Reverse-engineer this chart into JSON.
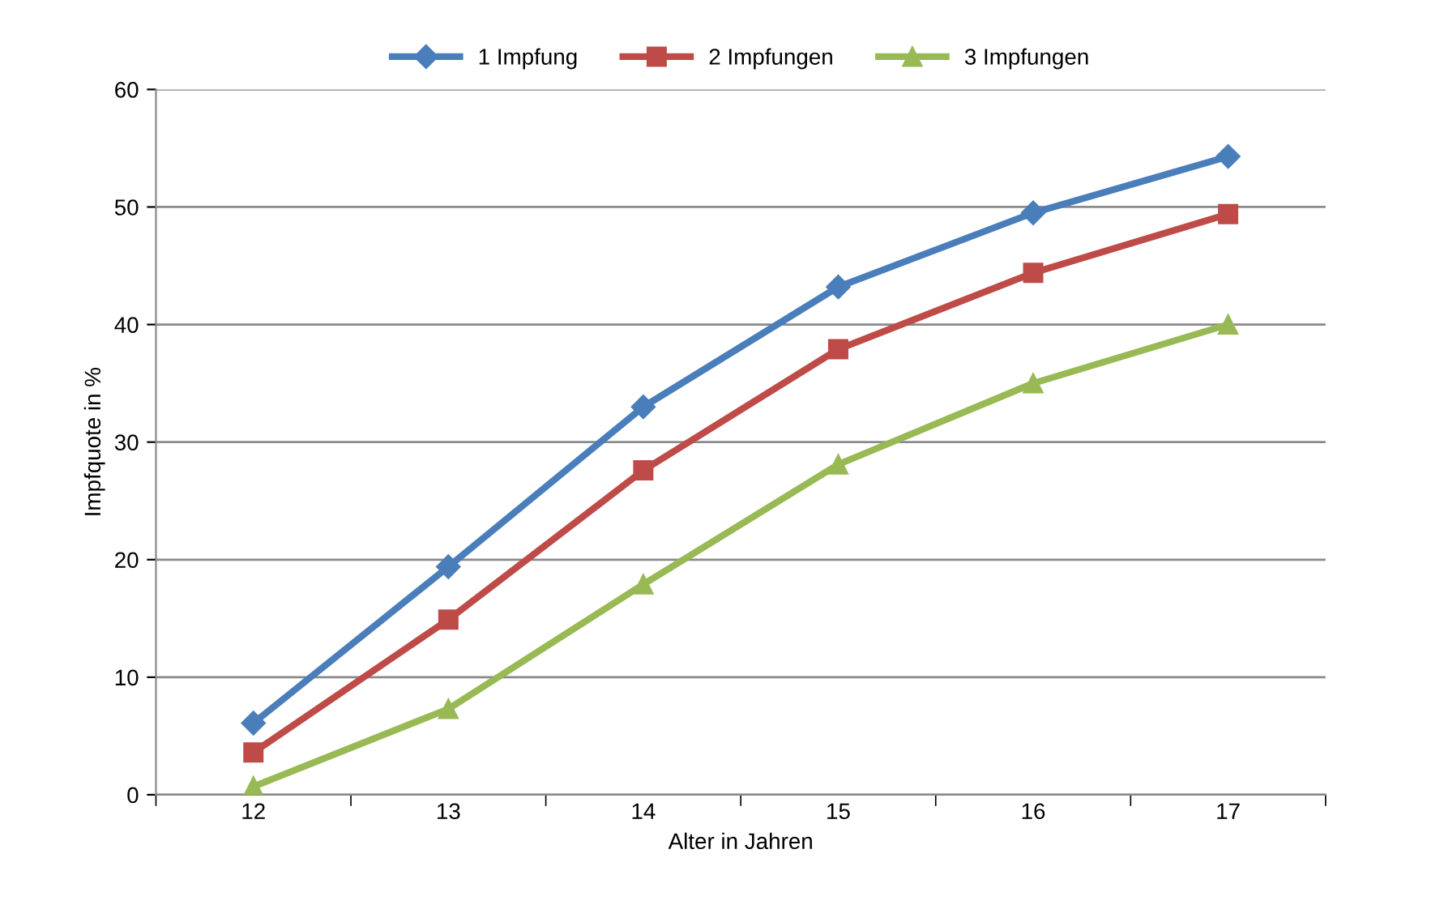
{
  "chart_data": {
    "type": "line",
    "xlabel": "Alter in Jahren",
    "ylabel": "Impfquote in %",
    "categories": [
      "12",
      "13",
      "14",
      "15",
      "16",
      "17"
    ],
    "series": [
      {
        "name": "1 Impfung",
        "color": "#4a7ebb",
        "values": [
          6.1,
          19.4,
          33.0,
          43.2,
          49.5,
          54.3
        ],
        "marker": "diamond"
      },
      {
        "name": "2 Impfungen",
        "color": "#be4b48",
        "values": [
          3.6,
          14.9,
          27.6,
          37.9,
          44.4,
          49.4
        ],
        "marker": "square"
      },
      {
        "name": "3 Impfungen",
        "color": "#98b954",
        "values": [
          0.7,
          7.3,
          17.9,
          28.1,
          35.0,
          40.0
        ],
        "marker": "triangle"
      }
    ],
    "ylim": [
      0,
      60
    ],
    "yticks": [
      0,
      10,
      20,
      30,
      40,
      50,
      60
    ],
    "grid": "y",
    "legend": "top",
    "line_style": "solid"
  }
}
